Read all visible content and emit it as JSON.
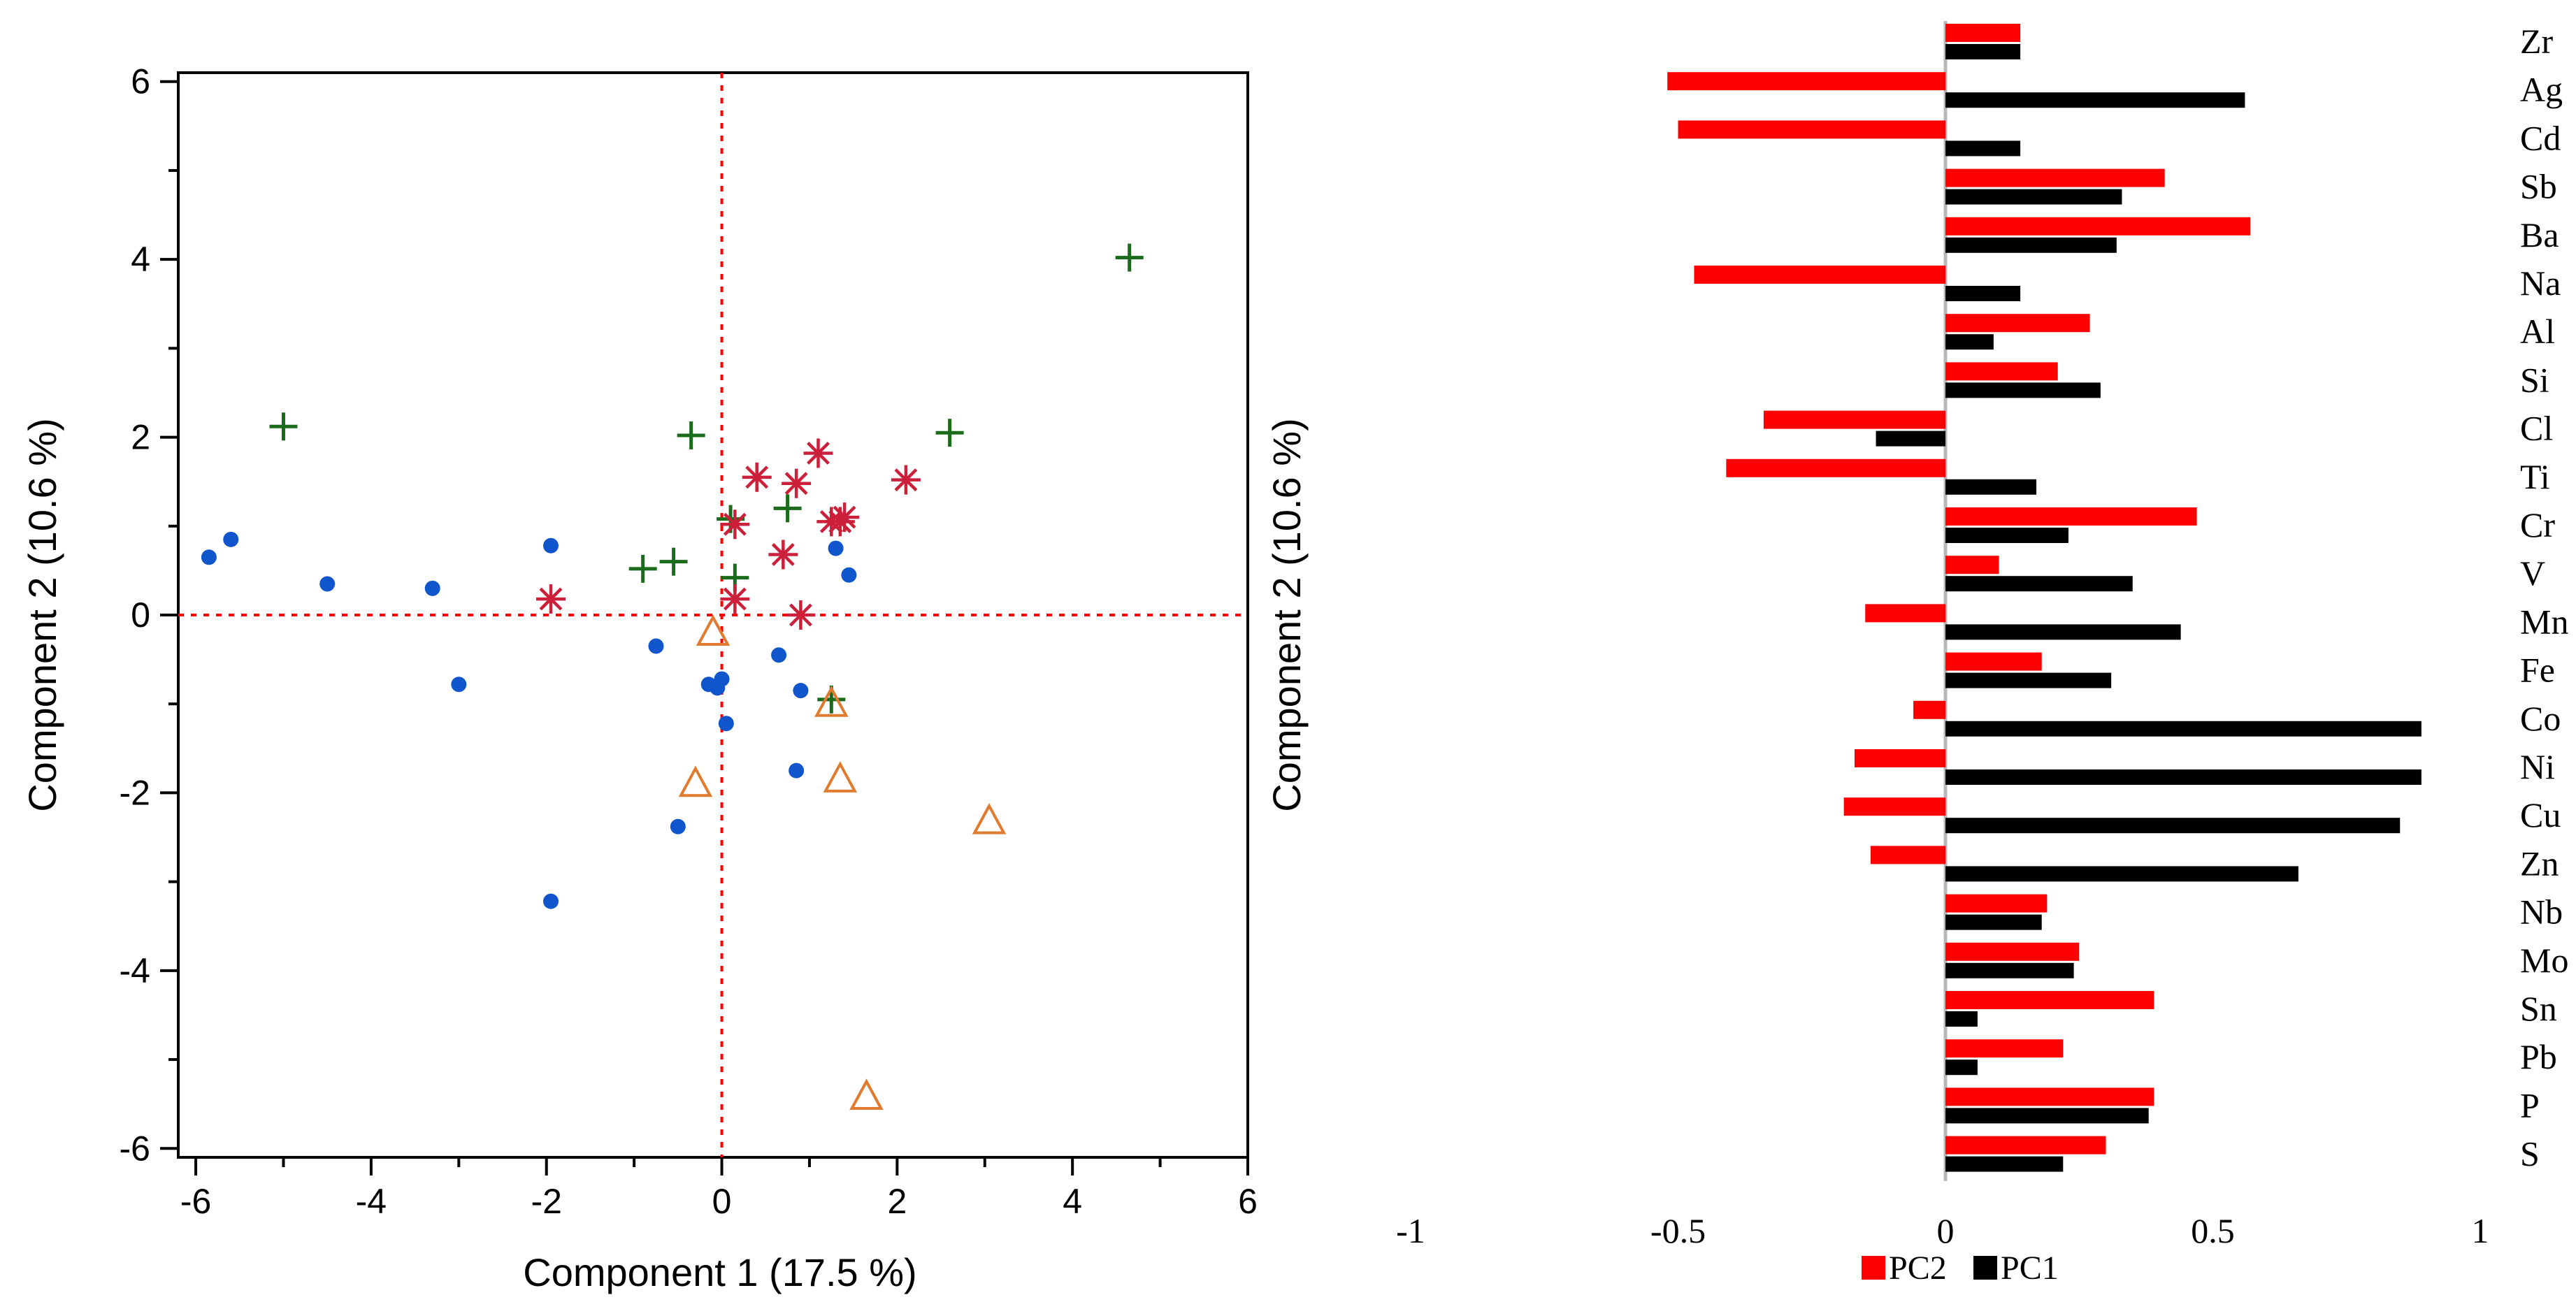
{
  "chart_data": [
    {
      "type": "scatter",
      "title": "",
      "xlabel": "Component 1 (17.5 %)",
      "ylabel": "Component 2 (10.6 %)",
      "ylabel_right": "Component 2 (10.6 %)",
      "xlim": [
        -6.2,
        6
      ],
      "ylim": [
        -6.1,
        6.1
      ],
      "xticks": [
        "-6",
        "-4",
        "-2",
        "0",
        "2",
        "4",
        "6"
      ],
      "yticks": [
        "-6",
        "-4",
        "-2",
        "0",
        "2",
        "4",
        "6"
      ],
      "reference_lines": {
        "x": 0,
        "y": 0,
        "style": "dotted",
        "color": "#ff0000"
      },
      "series": [
        {
          "name": "dots",
          "marker": "dot",
          "color": "#1155cc",
          "points": [
            [
              -5.85,
              0.65
            ],
            [
              -5.6,
              0.85
            ],
            [
              -4.5,
              0.35
            ],
            [
              -3.3,
              0.3
            ],
            [
              -3.0,
              -0.78
            ],
            [
              -1.95,
              0.78
            ],
            [
              -1.95,
              -3.22
            ],
            [
              -0.75,
              -0.35
            ],
            [
              -0.5,
              -2.38
            ],
            [
              -0.15,
              -0.78
            ],
            [
              -0.05,
              -0.82
            ],
            [
              0.0,
              -0.72
            ],
            [
              0.05,
              -1.22
            ],
            [
              0.65,
              -0.45
            ],
            [
              0.85,
              -1.75
            ],
            [
              0.9,
              -0.85
            ],
            [
              1.3,
              0.75
            ],
            [
              1.45,
              0.45
            ]
          ]
        },
        {
          "name": "plus",
          "marker": "plus",
          "color": "#1a6b1a",
          "points": [
            [
              -5.0,
              2.12
            ],
            [
              -0.35,
              2.02
            ],
            [
              -0.9,
              0.52
            ],
            [
              -0.55,
              0.6
            ],
            [
              0.1,
              1.08
            ],
            [
              0.15,
              0.42
            ],
            [
              0.75,
              1.2
            ],
            [
              1.25,
              -0.95
            ],
            [
              2.6,
              2.05
            ],
            [
              4.65,
              4.02
            ]
          ]
        },
        {
          "name": "asterisk",
          "marker": "asterisk",
          "color": "#cc1f3a",
          "points": [
            [
              -1.95,
              0.18
            ],
            [
              0.15,
              1.02
            ],
            [
              0.15,
              0.18
            ],
            [
              0.4,
              1.55
            ],
            [
              0.7,
              0.68
            ],
            [
              0.85,
              1.48
            ],
            [
              0.9,
              0.0
            ],
            [
              1.1,
              1.82
            ],
            [
              1.25,
              1.05
            ],
            [
              1.35,
              1.05
            ],
            [
              1.4,
              1.1
            ],
            [
              2.1,
              1.52
            ]
          ]
        },
        {
          "name": "triangle",
          "marker": "triangle",
          "color": "#e07a2e",
          "points": [
            [
              -0.3,
              -1.9
            ],
            [
              -0.1,
              -0.2
            ],
            [
              1.25,
              -1.0
            ],
            [
              1.35,
              -1.85
            ],
            [
              1.65,
              -5.42
            ],
            [
              3.05,
              -2.32
            ]
          ]
        }
      ]
    },
    {
      "type": "bar",
      "orientation": "horizontal",
      "title": "",
      "xlim": [
        -1,
        1
      ],
      "xticks": [
        "-1",
        "-0.5",
        "0",
        "0.5",
        "1"
      ],
      "categories": [
        "Zr",
        "Ag",
        "Cd",
        "Sb",
        "Ba",
        "Na",
        "Al",
        "Si",
        "Cl",
        "Ti",
        "Cr",
        "V",
        "Mn",
        "Fe",
        "Co",
        "Ni",
        "Cu",
        "Zn",
        "Nb",
        "Mo",
        "Sn",
        "Pb",
        "P",
        "S"
      ],
      "series": [
        {
          "name": "PC2",
          "color": "#ff0000",
          "values": [
            0.14,
            -0.52,
            -0.5,
            0.41,
            0.57,
            -0.47,
            0.27,
            0.21,
            -0.34,
            -0.41,
            0.47,
            0.1,
            -0.15,
            0.18,
            -0.06,
            -0.17,
            -0.19,
            -0.14,
            0.19,
            0.25,
            0.39,
            0.22,
            0.39,
            0.3
          ]
        },
        {
          "name": "PC1",
          "color": "#000000",
          "values": [
            0.14,
            0.56,
            0.14,
            0.33,
            0.32,
            0.14,
            0.09,
            0.29,
            -0.13,
            0.17,
            0.23,
            0.35,
            0.44,
            0.31,
            0.89,
            0.89,
            0.85,
            0.66,
            0.18,
            0.24,
            0.06,
            0.06,
            0.38,
            0.22
          ]
        }
      ],
      "legend": {
        "placement": "bottom",
        "entries": [
          "PC2",
          "PC1"
        ]
      }
    }
  ]
}
